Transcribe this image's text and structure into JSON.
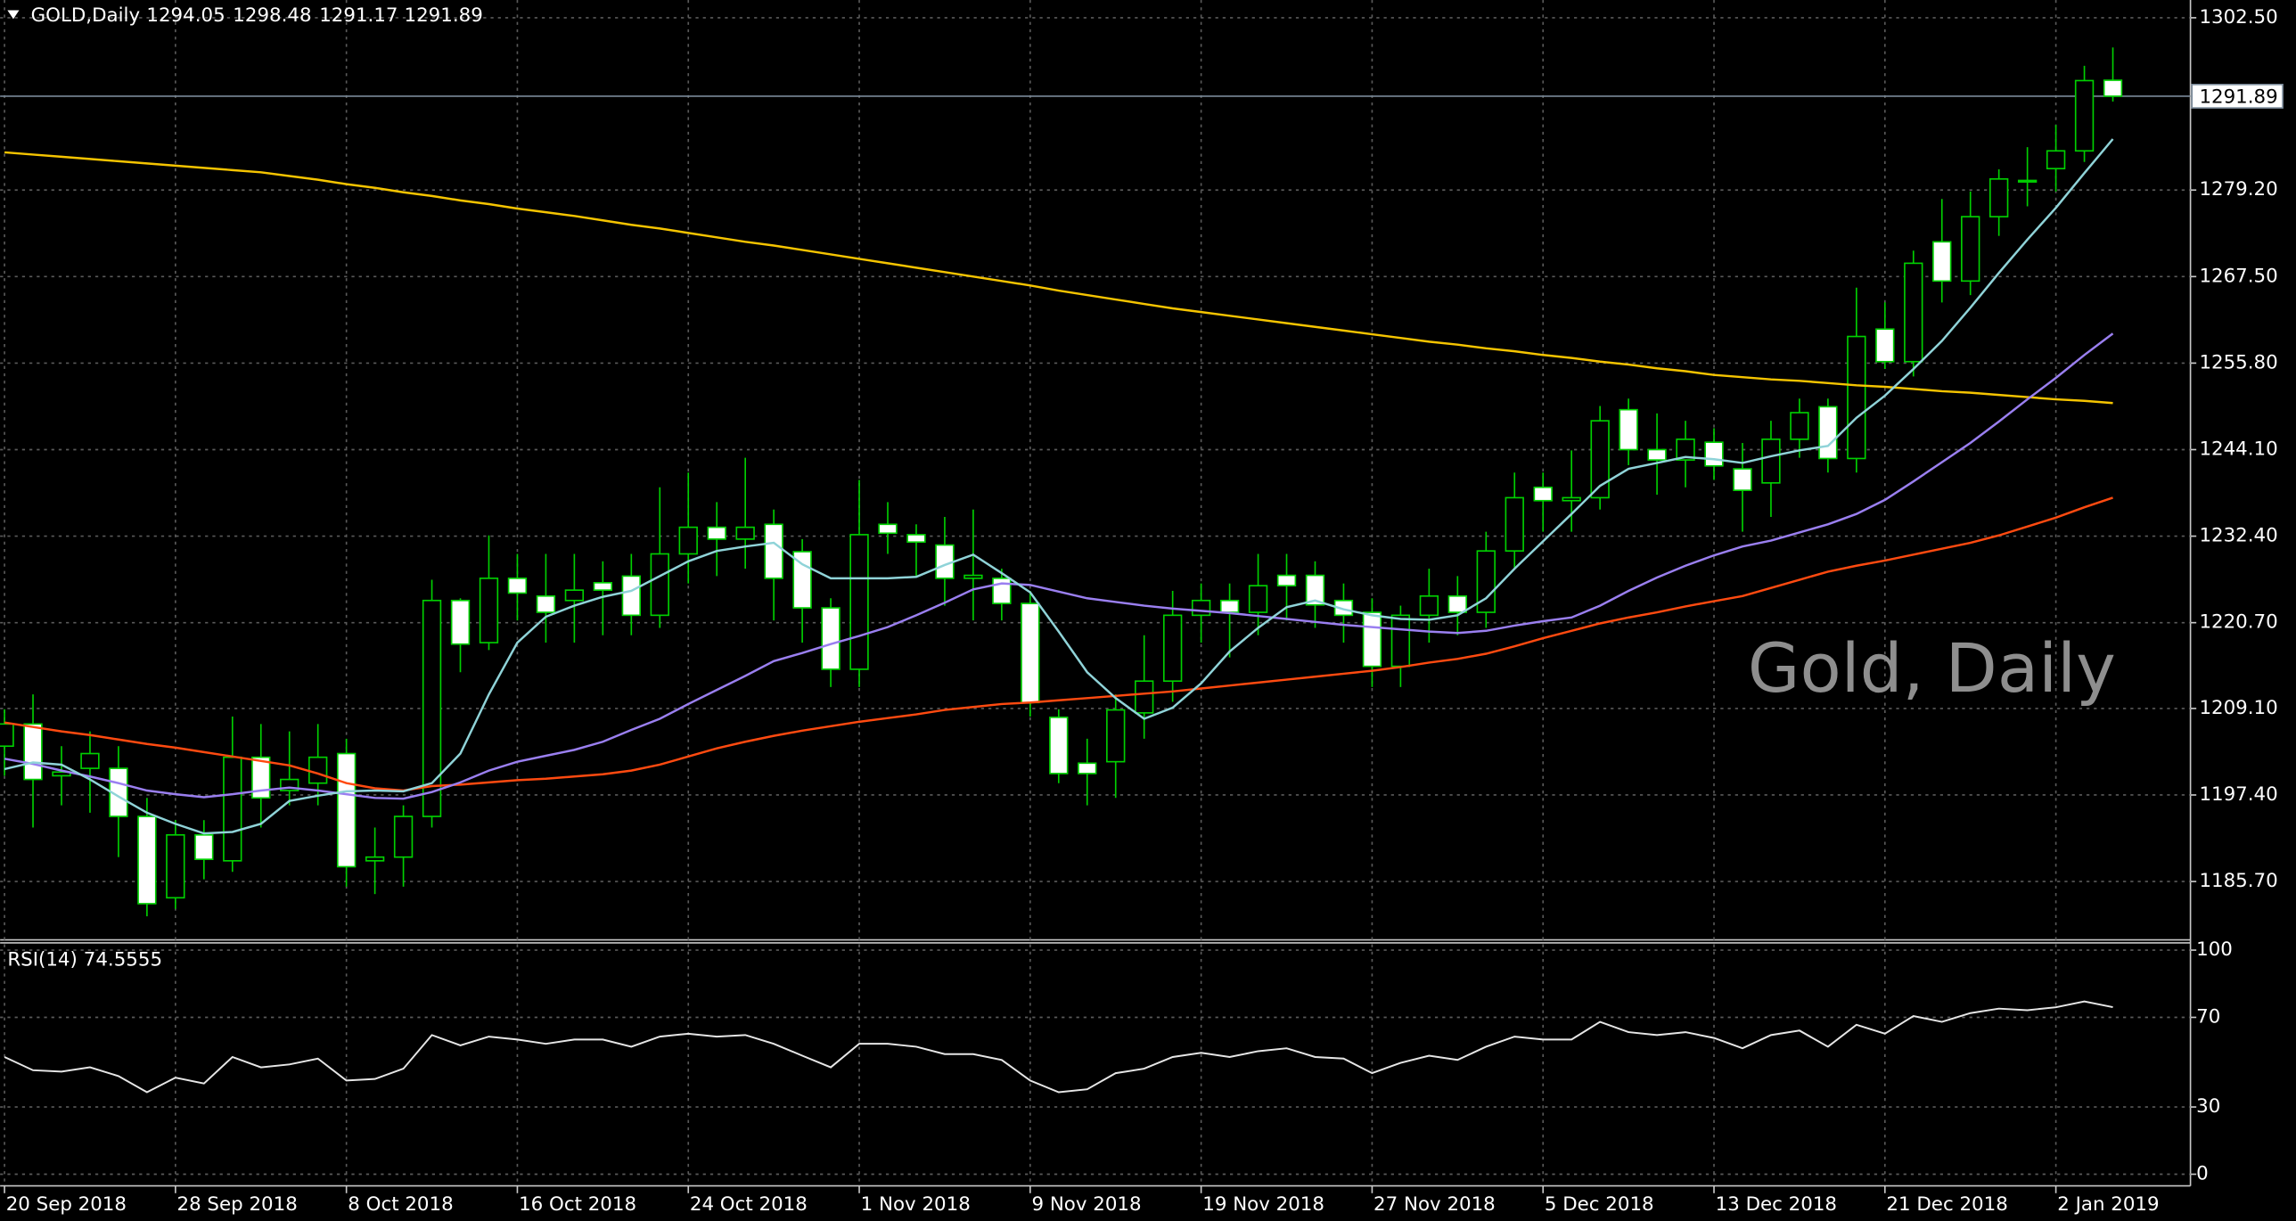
{
  "chart_data": [
    {
      "type": "candlestick",
      "title": "GOLD,Daily",
      "watermark": "Gold, Daily",
      "categories": [
        "20 Sep 2018",
        null,
        null,
        null,
        null,
        null,
        "28 Sep 2018",
        null,
        null,
        null,
        null,
        null,
        "8 Oct 2018",
        null,
        null,
        null,
        null,
        null,
        "16 Oct 2018",
        null,
        null,
        null,
        null,
        null,
        "24 Oct 2018",
        null,
        null,
        null,
        null,
        null,
        "1 Nov 2018",
        null,
        null,
        null,
        null,
        null,
        "9 Nov 2018",
        null,
        null,
        null,
        null,
        null,
        "19 Nov 2018",
        null,
        null,
        null,
        null,
        null,
        "27 Nov 2018",
        null,
        null,
        null,
        null,
        null,
        "5 Dec 2018",
        null,
        null,
        null,
        null,
        null,
        "13 Dec 2018",
        null,
        null,
        null,
        null,
        null,
        "21 Dec 2018",
        null,
        null,
        null,
        null,
        null,
        "2 Jan 2019",
        null,
        null
      ],
      "open": [
        1204,
        1207,
        1200,
        1201,
        1201,
        1194.5,
        1183.5,
        1192,
        1188.5,
        1202.5,
        1198,
        1199,
        1203,
        1188.5,
        1189,
        1194.5,
        1223.7,
        1218,
        1226.7,
        1224.3,
        1223.7,
        1226.1,
        1227,
        1221.7,
        1230,
        1233.6,
        1232,
        1234,
        1230.3,
        1222.7,
        1214.4,
        1234,
        1232.6,
        1231.2,
        1226.7,
        1226.7,
        1223.3,
        1207.9,
        1201.7,
        1201.9,
        1208.5,
        1212.8,
        1221.7,
        1223.7,
        1222.1,
        1227.1,
        1227.1,
        1223.7,
        1222.1,
        1214.8,
        1221.7,
        1224.3,
        1222.1,
        1230.4,
        1239,
        1237.2,
        1237.6,
        1249.5,
        1244.1,
        1242.7,
        1245.1,
        1241.5,
        1239.6,
        1245.5,
        1249.9,
        1242.9,
        1260.4,
        1256,
        1272.2,
        1266.9,
        1275.6,
        1280.3,
        1282.1,
        1284.5,
        1294.05
      ],
      "high": [
        1209,
        1211,
        1204,
        1206,
        1204,
        1197,
        1194,
        1194,
        1208,
        1207,
        1206,
        1207,
        1205,
        1193,
        1196,
        1226.5,
        1224,
        1232.5,
        1230,
        1230,
        1230,
        1229,
        1230,
        1239,
        1241,
        1237,
        1243,
        1236,
        1232,
        1224,
        1240,
        1237,
        1234,
        1235,
        1236,
        1228,
        1225,
        1209,
        1205,
        1211,
        1219,
        1225,
        1226,
        1226,
        1230,
        1230,
        1229,
        1226,
        1224,
        1223,
        1228,
        1227,
        1233,
        1241,
        1241,
        1244,
        1250,
        1251,
        1249,
        1248,
        1247,
        1245,
        1248,
        1251,
        1251,
        1266,
        1264,
        1271,
        1278,
        1279,
        1282,
        1285,
        1288,
        1296,
        1298.48
      ],
      "low": [
        1200,
        1193,
        1196,
        1195,
        1189,
        1181,
        1182,
        1186,
        1187,
        1193,
        1196,
        1196,
        1185,
        1184,
        1185,
        1193,
        1214,
        1217,
        1221,
        1218,
        1218,
        1219,
        1219,
        1220,
        1226,
        1227,
        1228,
        1221,
        1218,
        1212,
        1212,
        1230,
        1227,
        1223,
        1221,
        1221,
        1208,
        1199,
        1196,
        1197,
        1205,
        1210,
        1218,
        1216,
        1219,
        1221,
        1220,
        1218,
        1212,
        1212,
        1218,
        1219,
        1220,
        1228,
        1233,
        1233,
        1236,
        1242,
        1238,
        1239,
        1240,
        1233,
        1235,
        1243,
        1241,
        1241,
        1255,
        1254,
        1264,
        1265,
        1273,
        1277,
        1279,
        1283,
        1291.17
      ],
      "close": [
        1207,
        1199.5,
        1200.5,
        1203,
        1194.5,
        1182.7,
        1192,
        1188.7,
        1202.5,
        1197,
        1199.5,
        1202.5,
        1187.7,
        1189,
        1194.5,
        1223.7,
        1217.8,
        1226.7,
        1224.7,
        1222.1,
        1225.1,
        1225.1,
        1221.7,
        1230,
        1233.6,
        1232,
        1233.6,
        1226.7,
        1222.7,
        1214.4,
        1232.6,
        1232.8,
        1231.6,
        1226.7,
        1227.1,
        1223.3,
        1209.9,
        1200.3,
        1200.3,
        1208.9,
        1212.8,
        1221.7,
        1223.7,
        1222.1,
        1225.7,
        1225.7,
        1223.1,
        1221.7,
        1214.8,
        1221.7,
        1224.3,
        1222.1,
        1230.4,
        1237.6,
        1237.2,
        1237.6,
        1248,
        1244.1,
        1242.7,
        1245.5,
        1241.9,
        1238.6,
        1245.5,
        1249.1,
        1242.9,
        1259.4,
        1256,
        1269.3,
        1266.9,
        1275.6,
        1280.7,
        1280.5,
        1284.5,
        1294,
        1291.89
      ],
      "candle_colors": {
        "up": "#000000",
        "down": "#ffffff",
        "outline": "#00d000"
      },
      "series": [
        {
          "color": "#f5c400",
          "values": [
            1284.3,
            1284.0,
            1283.7,
            1283.4,
            1283.1,
            1282.8,
            1282.5,
            1282.2,
            1281.9,
            1281.6,
            1281.1,
            1280.6,
            1280.0,
            1279.5,
            1278.9,
            1278.4,
            1277.8,
            1277.3,
            1276.7,
            1276.2,
            1275.7,
            1275.1,
            1274.5,
            1274.0,
            1273.4,
            1272.8,
            1272.2,
            1271.7,
            1271.1,
            1270.5,
            1269.9,
            1269.3,
            1268.7,
            1268.1,
            1267.5,
            1266.9,
            1266.3,
            1265.6,
            1265.0,
            1264.4,
            1263.8,
            1263.2,
            1262.7,
            1262.2,
            1261.7,
            1261.2,
            1260.7,
            1260.2,
            1259.7,
            1259.2,
            1258.7,
            1258.3,
            1257.8,
            1257.4,
            1256.9,
            1256.5,
            1256.0,
            1255.6,
            1255.1,
            1254.7,
            1254.2,
            1253.9,
            1253.6,
            1253.4,
            1253.1,
            1252.8,
            1252.6,
            1252.3,
            1252.0,
            1251.8,
            1251.5,
            1251.2,
            1250.9,
            1250.7,
            1250.4
          ]
        },
        {
          "color": "#ff4a10",
          "values": [
            1207.2,
            1206.6,
            1206.0,
            1205.5,
            1204.9,
            1204.3,
            1203.8,
            1203.2,
            1202.6,
            1202.0,
            1201.4,
            1200.3,
            1199.0,
            1198.3,
            1198.0,
            1198.6,
            1198.8,
            1199.1,
            1199.4,
            1199.6,
            1199.9,
            1200.2,
            1200.7,
            1201.5,
            1202.6,
            1203.7,
            1204.6,
            1205.4,
            1206.1,
            1206.7,
            1207.3,
            1207.8,
            1208.3,
            1208.9,
            1209.3,
            1209.7,
            1209.9,
            1210.2,
            1210.5,
            1210.8,
            1211.1,
            1211.4,
            1211.8,
            1212.2,
            1212.6,
            1213.0,
            1213.4,
            1213.8,
            1214.2,
            1214.7,
            1215.3,
            1215.8,
            1216.5,
            1217.5,
            1218.6,
            1219.6,
            1220.6,
            1221.4,
            1222.1,
            1222.9,
            1223.6,
            1224.3,
            1225.4,
            1226.5,
            1227.6,
            1228.4,
            1229.1,
            1229.9,
            1230.7,
            1231.5,
            1232.5,
            1233.7,
            1234.9,
            1236.3,
            1237.6
          ]
        },
        {
          "color": "#9a7ff0",
          "values": [
            1202.3,
            1201.6,
            1200.7,
            1199.9,
            1199.0,
            1198.0,
            1197.5,
            1197.1,
            1197.5,
            1198.0,
            1198.4,
            1198.0,
            1197.5,
            1197.0,
            1196.9,
            1197.8,
            1199.1,
            1200.7,
            1201.9,
            1202.7,
            1203.5,
            1204.6,
            1206.2,
            1207.7,
            1209.7,
            1211.6,
            1213.5,
            1215.5,
            1216.6,
            1217.8,
            1218.9,
            1220.1,
            1221.7,
            1223.4,
            1225.2,
            1226.0,
            1225.8,
            1224.9,
            1224.0,
            1223.5,
            1223.0,
            1222.6,
            1222.3,
            1222.0,
            1221.6,
            1221.2,
            1220.8,
            1220.4,
            1220.1,
            1219.8,
            1219.5,
            1219.3,
            1219.6,
            1220.3,
            1220.9,
            1221.4,
            1223.0,
            1225.0,
            1226.8,
            1228.4,
            1229.8,
            1231.0,
            1231.8,
            1232.9,
            1234.0,
            1235.4,
            1237.3,
            1239.8,
            1242.4,
            1245.0,
            1247.9,
            1250.9,
            1253.8,
            1256.9,
            1259.8
          ]
        },
        {
          "color": "#8fd3d8",
          "values": [
            1200.9,
            1201.8,
            1201.5,
            1199.5,
            1197.2,
            1195.0,
            1193.5,
            1192.2,
            1192.4,
            1193.5,
            1196.6,
            1197.3,
            1197.9,
            1198.0,
            1197.9,
            1199.0,
            1203.0,
            1211.0,
            1218.0,
            1221.5,
            1223.0,
            1224.2,
            1225.0,
            1227.0,
            1229.0,
            1230.4,
            1231.0,
            1231.5,
            1228.6,
            1226.7,
            1226.7,
            1226.7,
            1226.9,
            1228.5,
            1229.9,
            1227.4,
            1224.8,
            1219.5,
            1214.0,
            1210.5,
            1207.7,
            1209.2,
            1212.5,
            1216.8,
            1220.0,
            1222.8,
            1223.7,
            1222.5,
            1221.7,
            1221.2,
            1221.1,
            1221.7,
            1224.0,
            1228.0,
            1231.7,
            1235.4,
            1239.2,
            1241.5,
            1242.3,
            1243.1,
            1242.8,
            1242.3,
            1243.2,
            1244.0,
            1244.6,
            1248.4,
            1251.4,
            1255.0,
            1258.8,
            1263.3,
            1268.0,
            1272.5,
            1276.8,
            1281.5,
            1286.1
          ]
        }
      ],
      "ylim": [
        1178.0,
        1304.9
      ],
      "yticks": [
        {
          "value": 1185.7,
          "label": "1185.70"
        },
        {
          "value": 1197.4,
          "label": "1197.40"
        },
        {
          "value": 1209.1,
          "label": "1209.10"
        },
        {
          "value": 1220.7,
          "label": "1220.70"
        },
        {
          "value": 1232.4,
          "label": "1232.40"
        },
        {
          "value": 1244.1,
          "label": "1244.10"
        },
        {
          "value": 1255.8,
          "label": "1255.80"
        },
        {
          "value": 1267.5,
          "label": "1267.50"
        },
        {
          "value": 1279.2,
          "label": "1279.20"
        },
        {
          "value": 1302.5,
          "label": "1302.50"
        }
      ],
      "grid": true
    },
    {
      "type": "line",
      "title": "RSI(14)",
      "color": "#e6e6e6",
      "values": [
        52.3,
        46.4,
        45.8,
        47.7,
        43.8,
        36.6,
        43.1,
        40.5,
        52.3,
        47.7,
        49.0,
        51.6,
        41.8,
        42.5,
        47.1,
        62.1,
        57.5,
        61.4,
        60.1,
        58.2,
        60.1,
        60.1,
        56.9,
        61.4,
        62.7,
        61.4,
        62.1,
        58.2,
        52.9,
        47.7,
        58.2,
        58.2,
        56.9,
        53.6,
        53.6,
        51.0,
        41.8,
        36.6,
        37.9,
        45.1,
        47.1,
        52.3,
        54.2,
        52.3,
        54.9,
        56.2,
        52.3,
        51.6,
        45.1,
        49.7,
        52.9,
        51.0,
        56.9,
        61.4,
        60.1,
        60.1,
        68.0,
        63.4,
        62.1,
        63.4,
        60.8,
        56.2,
        62.1,
        64.1,
        56.9,
        66.7,
        62.7,
        70.6,
        68.0,
        71.9,
        73.9,
        73.2,
        74.5,
        77.1,
        74.5555
      ],
      "ylim": [
        -5.2,
        102.6
      ],
      "yticks": [
        0,
        30,
        70,
        100
      ],
      "grid": true
    }
  ]
}
